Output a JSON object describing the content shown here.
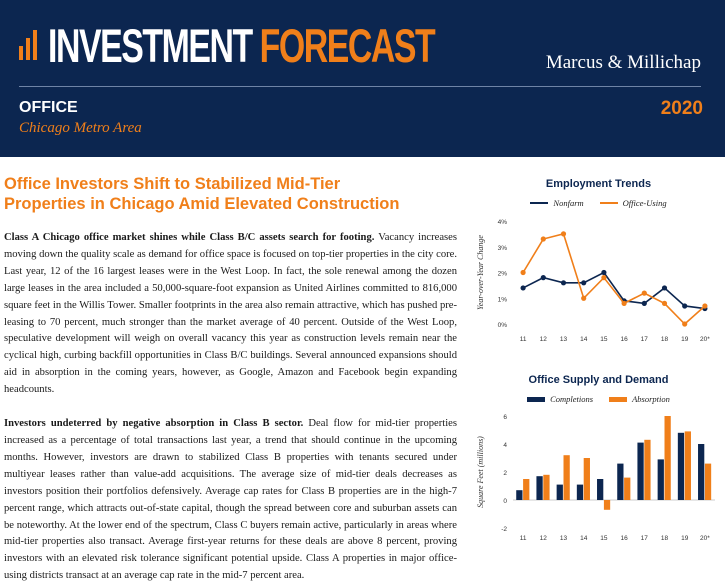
{
  "banner": {
    "title_part1": "INVESTMENT",
    "title_part2": "FORECAST",
    "brand": "Marcus & Millichap",
    "sector": "OFFICE",
    "metro": "Chicago Metro Area",
    "year": "2020",
    "colors": {
      "navy": "#0c2650",
      "orange": "#f07f1a"
    }
  },
  "headline": "Office Investors Shift to Stabilized Mid-Tier Properties in Chicago Amid Elevated Construction",
  "article": [
    {
      "lead": "Class A Chicago office market shines while Class B/C assets search for footing.",
      "body": " Vacancy increases moving down the quality scale as demand for office space is focused on top-tier properties in the city core. Last year, 12 of the 16 largest leases were in the West Loop. In fact, the sole renewal among the dozen large leases in the area included a 50,000-square-foot expansion as United Airlines committed to 816,000 square feet in the Willis Tower. Smaller footprints in the area also remain attractive, which has pushed pre-leasing to 70 percent, much stronger than the market average of 40 percent. Outside of the West Loop, speculative development will weigh on overall vacancy this year as construction levels remain near the cyclical high, curbing backfill opportunities in Class B/C buildings. Several announced expansions should aid in absorption in the coming years, however, as Google, Amazon and Facebook begin expanding headcounts."
    },
    {
      "lead": "Investors undeterred by negative absorption in Class B sector.",
      "body": " Deal flow for mid-tier properties increased as a percentage of total transactions last year, a trend that should continue in the upcoming months. However, investors are drawn to stabilized Class B properties with tenants secured under multiyear leases rather than value-add acquisitions. The average size of mid-tier deals decreases as investors position their portfolios defensively. Average cap rates for Class B properties are in the high-7 percent range, which attracts out-of-state capital, though the spread between core and suburban assets can be noteworthy. At the lower end of the spectrum, Class C buyers remain active, particularly in areas where mid-tier properties also transact. Average first-year returns for these deals are above 8 percent, proving investors with an elevated risk tolerance significant potential upside. Class A properties in major office-using districts transact at an average cap rate in the mid-7 percent area."
    }
  ],
  "chart_data": [
    {
      "type": "line",
      "title": "Employment Trends",
      "ylabel": "Year-over-Year Change",
      "categories": [
        "11",
        "12",
        "13",
        "14",
        "15",
        "16",
        "17",
        "18",
        "19",
        "20*"
      ],
      "ylim": [
        0,
        4
      ],
      "yticks": [
        0,
        1,
        2,
        3,
        4
      ],
      "ytick_labels": [
        "0%",
        "1%",
        "2%",
        "3%",
        "4%"
      ],
      "legend_position": "top",
      "series": [
        {
          "name": "Nonfarm",
          "color": "#0c2650",
          "values": [
            1.4,
            1.8,
            1.6,
            1.6,
            2.0,
            0.9,
            0.8,
            1.4,
            0.7,
            0.6
          ]
        },
        {
          "name": "Office-Using",
          "color": "#f07f1a",
          "values": [
            2.0,
            3.3,
            3.5,
            1.0,
            1.8,
            0.8,
            1.2,
            0.8,
            0.0,
            0.7
          ]
        }
      ]
    },
    {
      "type": "bar",
      "title": "Office Supply and Demand",
      "ylabel": "Square Feet (millions)",
      "categories": [
        "11",
        "12",
        "13",
        "14",
        "15",
        "16",
        "17",
        "18",
        "19",
        "20*"
      ],
      "ylim": [
        -2,
        6
      ],
      "yticks": [
        -2,
        0,
        2,
        4,
        6
      ],
      "ytick_labels": [
        "-2",
        "0",
        "2",
        "4",
        "6"
      ],
      "legend_position": "top",
      "series": [
        {
          "name": "Completions",
          "color": "#0c2650",
          "values": [
            0.7,
            1.7,
            1.1,
            1.1,
            1.5,
            2.6,
            4.1,
            2.9,
            4.8,
            4.0
          ]
        },
        {
          "name": "Absorption",
          "color": "#f07f1a",
          "values": [
            1.5,
            1.8,
            3.2,
            3.0,
            -0.7,
            1.6,
            4.3,
            6.0,
            4.9,
            2.6
          ]
        }
      ]
    }
  ]
}
